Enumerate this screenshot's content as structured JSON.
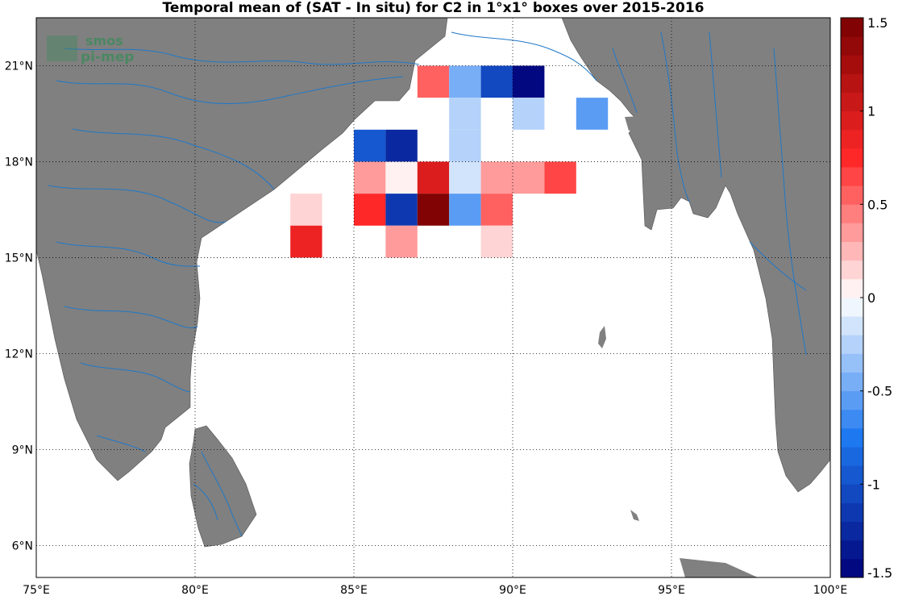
{
  "title": "Temporal mean of (SAT - In situ) for C2 in 1°x1° boxes over 2015-2016",
  "watermark": {
    "line1": "smos",
    "line2": "pi-mep",
    "color": "#3a8a5a"
  },
  "colors": {
    "land": "#808080",
    "rivers": "#1f78c8",
    "ocean": "#ffffff",
    "grid": "#000000"
  },
  "chart_data": {
    "type": "heatmap",
    "xlim": [
      75,
      100
    ],
    "ylim": [
      5,
      22.5
    ],
    "x_ticks": [
      75,
      80,
      85,
      90,
      95,
      100
    ],
    "x_tick_labels": [
      "75°E",
      "80°E",
      "85°E",
      "90°E",
      "95°E",
      "100°E"
    ],
    "y_ticks": [
      6,
      9,
      12,
      15,
      18,
      21
    ],
    "y_tick_labels": [
      "6°N",
      "9°N",
      "12°N",
      "15°N",
      "18°N",
      "21°N"
    ],
    "grid": true,
    "cell_size_deg": 1,
    "cells": [
      {
        "lon": 87,
        "lat": 20,
        "value": 0.55
      },
      {
        "lon": 88,
        "lat": 20,
        "value": -0.45
      },
      {
        "lon": 89,
        "lat": 20,
        "value": -1.05
      },
      {
        "lon": 90,
        "lat": 20,
        "value": -1.5
      },
      {
        "lon": 88,
        "lat": 19,
        "value": -0.25
      },
      {
        "lon": 90,
        "lat": 19,
        "value": -0.25
      },
      {
        "lon": 92,
        "lat": 19,
        "value": -0.55
      },
      {
        "lon": 85,
        "lat": 18,
        "value": -0.95
      },
      {
        "lon": 86,
        "lat": 18,
        "value": -1.25
      },
      {
        "lon": 88,
        "lat": 18,
        "value": -0.25
      },
      {
        "lon": 85,
        "lat": 17,
        "value": 0.3
      },
      {
        "lon": 86,
        "lat": 17,
        "value": 0.05
      },
      {
        "lon": 87,
        "lat": 17,
        "value": 0.95
      },
      {
        "lon": 88,
        "lat": 17,
        "value": -0.15
      },
      {
        "lon": 89,
        "lat": 17,
        "value": 0.3
      },
      {
        "lon": 90,
        "lat": 17,
        "value": 0.3
      },
      {
        "lon": 91,
        "lat": 17,
        "value": 0.65
      },
      {
        "lon": 83,
        "lat": 16,
        "value": 0.15
      },
      {
        "lon": 85,
        "lat": 16,
        "value": 0.75
      },
      {
        "lon": 86,
        "lat": 16,
        "value": -1.15
      },
      {
        "lon": 87,
        "lat": 16,
        "value": 1.4
      },
      {
        "lon": 88,
        "lat": 16,
        "value": -0.55
      },
      {
        "lon": 89,
        "lat": 16,
        "value": 0.55
      },
      {
        "lon": 83,
        "lat": 15,
        "value": 0.8
      },
      {
        "lon": 86,
        "lat": 15,
        "value": 0.3
      },
      {
        "lon": 89,
        "lat": 15,
        "value": 0.15
      }
    ],
    "colorbar": {
      "range": [
        -1.5,
        1.5
      ],
      "levels": 30,
      "ticks": [
        1.5,
        1,
        0.5,
        0,
        -0.5,
        -1,
        -1.5
      ],
      "tick_labels": [
        "1.5",
        "1",
        "0.5",
        "0",
        "-0.5",
        "-1",
        "-1.5"
      ],
      "placement": "right"
    }
  }
}
